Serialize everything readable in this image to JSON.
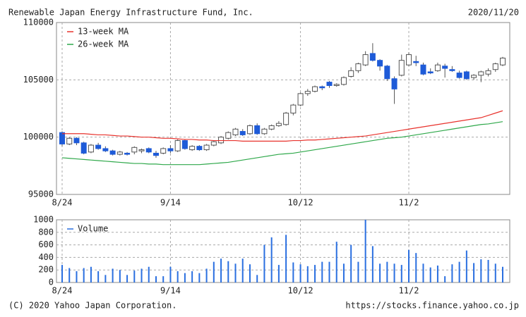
{
  "header": {
    "title": "Renewable Japan Energy Infrastructure Fund, Inc.",
    "date": "2020/11/20"
  },
  "chart_data": [
    {
      "type": "candlestick",
      "categories": [
        "8/24",
        null,
        null,
        null,
        null,
        null,
        null,
        null,
        null,
        null,
        null,
        null,
        null,
        null,
        null,
        "9/14",
        null,
        null,
        null,
        null,
        null,
        null,
        null,
        null,
        null,
        null,
        null,
        null,
        null,
        null,
        null,
        null,
        null,
        "10/12",
        null,
        null,
        null,
        null,
        null,
        null,
        null,
        null,
        null,
        null,
        null,
        null,
        null,
        null,
        "11/2",
        null,
        null,
        null,
        null,
        null,
        null,
        null,
        null,
        null,
        null,
        null,
        null,
        null
      ],
      "open": [
        100400,
        99400,
        99900,
        99500,
        98700,
        99300,
        99000,
        98800,
        98500,
        98600,
        98700,
        98800,
        99000,
        98600,
        98600,
        99000,
        98800,
        99700,
        98900,
        99200,
        98900,
        99300,
        99500,
        99900,
        100200,
        100500,
        100300,
        101000,
        100300,
        100700,
        101000,
        101100,
        102100,
        102800,
        103800,
        104000,
        104400,
        104800,
        104500,
        104600,
        105300,
        105800,
        106300,
        107300,
        106700,
        106200,
        105100,
        105400,
        106300,
        106600,
        106300,
        105700,
        105800,
        106200,
        105900,
        105600,
        105700,
        105200,
        105400,
        105500,
        105900,
        106300
      ],
      "high": [
        100500,
        100000,
        100000,
        99600,
        99400,
        99500,
        99200,
        98900,
        98800,
        98700,
        99200,
        99000,
        99100,
        98800,
        99100,
        99300,
        99800,
        99800,
        99300,
        99300,
        99400,
        99700,
        100100,
        100500,
        100800,
        100700,
        101100,
        101200,
        100800,
        101100,
        101400,
        102200,
        102900,
        103900,
        104200,
        104500,
        104500,
        104900,
        104700,
        105300,
        106100,
        106500,
        107500,
        108200,
        106800,
        106300,
        105300,
        107200,
        107400,
        107100,
        106500,
        106000,
        106500,
        106400,
        106200,
        105800,
        105800,
        105500,
        105800,
        106000,
        106500,
        107000
      ],
      "low": [
        99200,
        99300,
        99300,
        98500,
        98600,
        98900,
        98700,
        98400,
        98400,
        98400,
        98500,
        98600,
        98600,
        98200,
        98500,
        98600,
        98700,
        98900,
        98800,
        98800,
        98800,
        99200,
        99400,
        99800,
        100100,
        100100,
        100200,
        100200,
        100200,
        100600,
        100900,
        101000,
        101900,
        102700,
        103600,
        103900,
        104100,
        104300,
        104400,
        104500,
        105200,
        105600,
        106200,
        106600,
        105800,
        104900,
        102900,
        105300,
        106200,
        106200,
        105400,
        105500,
        105700,
        105200,
        105700,
        105100,
        105000,
        105000,
        104800,
        105300,
        105700,
        106200
      ],
      "close": [
        99400,
        99900,
        99500,
        98600,
        99300,
        99000,
        98800,
        98500,
        98700,
        98500,
        99100,
        98900,
        98700,
        98400,
        99000,
        98800,
        99700,
        99000,
        99200,
        98900,
        99300,
        99600,
        100000,
        100400,
        100700,
        100200,
        101000,
        100300,
        100700,
        101000,
        101200,
        102100,
        102800,
        103800,
        104000,
        104400,
        104300,
        104500,
        104600,
        105200,
        105800,
        106400,
        107200,
        106700,
        106200,
        105100,
        104200,
        106700,
        107200,
        106500,
        105500,
        105600,
        106300,
        106000,
        105800,
        105200,
        105100,
        105400,
        105700,
        105800,
        106400,
        106900
      ],
      "up_color": "#ffffff",
      "down_color": "#1e5bd8",
      "series": [
        {
          "name": "13-week MA",
          "color": "#e8322c",
          "values": [
            100300,
            100300,
            100300,
            100300,
            100250,
            100200,
            100200,
            100150,
            100100,
            100100,
            100050,
            100000,
            100000,
            99950,
            99900,
            99900,
            99850,
            99800,
            99800,
            99750,
            99750,
            99700,
            99700,
            99700,
            99700,
            99650,
            99650,
            99650,
            99650,
            99650,
            99650,
            99650,
            99700,
            99700,
            99750,
            99750,
            99800,
            99850,
            99900,
            99950,
            100000,
            100050,
            100100,
            100200,
            100300,
            100400,
            100500,
            100600,
            100700,
            100800,
            100900,
            101000,
            101100,
            101200,
            101300,
            101400,
            101500,
            101600,
            101700,
            101900,
            102100,
            102300
          ]
        },
        {
          "name": "26-week MA",
          "color": "#2ea84a",
          "values": [
            98200,
            98150,
            98100,
            98050,
            98000,
            97950,
            97900,
            97850,
            97800,
            97750,
            97700,
            97700,
            97650,
            97650,
            97600,
            97600,
            97600,
            97600,
            97600,
            97600,
            97650,
            97700,
            97750,
            97800,
            97900,
            98000,
            98100,
            98200,
            98300,
            98400,
            98500,
            98550,
            98600,
            98700,
            98800,
            98900,
            99000,
            99100,
            99200,
            99300,
            99400,
            99500,
            99600,
            99700,
            99800,
            99900,
            99950,
            100000,
            100100,
            100200,
            100300,
            100400,
            100500,
            100600,
            100700,
            100800,
            100900,
            101000,
            101100,
            101150,
            101250,
            101350
          ]
        }
      ],
      "ylim": [
        95000,
        110000
      ],
      "yticks": [
        95000,
        100000,
        105000,
        110000
      ],
      "grid": true
    },
    {
      "type": "bar",
      "categories": [
        "8/24",
        null,
        null,
        null,
        null,
        null,
        null,
        null,
        null,
        null,
        null,
        null,
        null,
        null,
        null,
        "9/14",
        null,
        null,
        null,
        null,
        null,
        null,
        null,
        null,
        null,
        null,
        null,
        null,
        null,
        null,
        null,
        null,
        null,
        "10/12",
        null,
        null,
        null,
        null,
        null,
        null,
        null,
        null,
        null,
        null,
        null,
        null,
        null,
        null,
        "11/2",
        null,
        null,
        null,
        null,
        null,
        null,
        null,
        null,
        null,
        null,
        null,
        null,
        null
      ],
      "series": [
        {
          "name": "Volume",
          "color": "#2a6fe0",
          "values": [
            280,
            230,
            180,
            230,
            250,
            180,
            120,
            220,
            200,
            120,
            190,
            220,
            250,
            100,
            100,
            250,
            180,
            150,
            180,
            150,
            220,
            330,
            380,
            340,
            300,
            380,
            290,
            120,
            600,
            720,
            280,
            760,
            320,
            290,
            260,
            280,
            330,
            330,
            650,
            300,
            600,
            330,
            1000,
            580,
            300,
            330,
            300,
            280,
            520,
            470,
            300,
            240,
            270,
            100,
            290,
            330,
            510,
            310,
            370,
            360,
            300,
            250
          ]
        }
      ],
      "ylim": [
        0,
        1000
      ],
      "yticks": [
        0,
        200,
        400,
        600,
        800,
        1000
      ],
      "grid": true
    }
  ],
  "footer": {
    "copyright": "(C) 2020 Yahoo Japan Corporation.",
    "url": "https://stocks.finance.yahoo.co.jp"
  }
}
